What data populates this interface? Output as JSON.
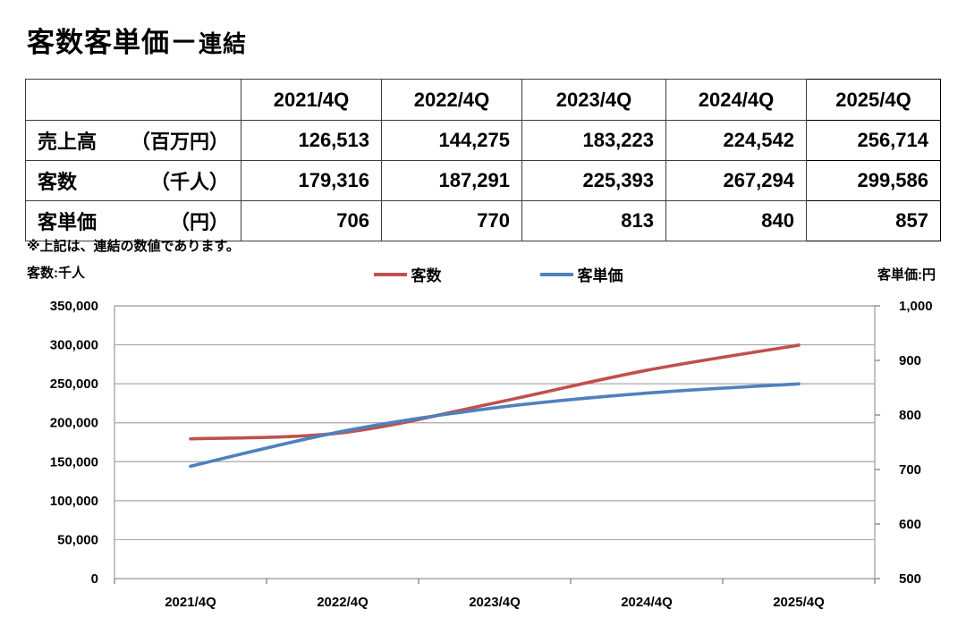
{
  "title": {
    "main": "客数客単価－",
    "sub": "連結"
  },
  "table": {
    "header": [
      "",
      "2021/4Q",
      "2022/4Q",
      "2023/4Q",
      "2024/4Q",
      "2025/4Q"
    ],
    "rows": [
      {
        "label": "売上高",
        "unit": "（百万円）",
        "values": [
          "126,513",
          "144,275",
          "183,223",
          "224,542",
          "256,714"
        ]
      },
      {
        "label": "客数",
        "unit": "（千人）",
        "values": [
          "179,316",
          "187,291",
          "225,393",
          "267,294",
          "299,586"
        ]
      },
      {
        "label": "客単価",
        "unit": "（円）",
        "values": [
          "706",
          "770",
          "813",
          "840",
          "857"
        ]
      }
    ]
  },
  "note": "※上記は、連結の数値であります。",
  "axis_captions": {
    "left": "客数:千人",
    "right": "客単価:円"
  },
  "legend": [
    {
      "label": "客数",
      "color": "#C0504D"
    },
    {
      "label": "客単価",
      "color": "#4F81BD"
    }
  ],
  "colors": {
    "header_green": "#00C865",
    "customers_red": "#C0504D",
    "unit_price_blue": "#4F81BD",
    "gridline_gray": "#A9A9A9"
  },
  "chart_data": {
    "type": "line",
    "smoothed": true,
    "grid": true,
    "legend_position": "top",
    "categories": [
      "2021/4Q",
      "2022/4Q",
      "2023/4Q",
      "2024/4Q",
      "2025/4Q"
    ],
    "series": [
      {
        "name": "客数",
        "axis": "left",
        "color": "#C0504D",
        "values": [
          179316,
          187291,
          225393,
          267294,
          299586
        ]
      },
      {
        "name": "客単価",
        "axis": "right",
        "color": "#4F81BD",
        "values": [
          706,
          770,
          813,
          840,
          857
        ]
      }
    ],
    "left_axis": {
      "label": "客数:千人",
      "min": 0,
      "max": 350000,
      "step": 50000
    },
    "right_axis": {
      "label": "客単価:円",
      "min": 500,
      "max": 1000,
      "step": 100
    }
  }
}
